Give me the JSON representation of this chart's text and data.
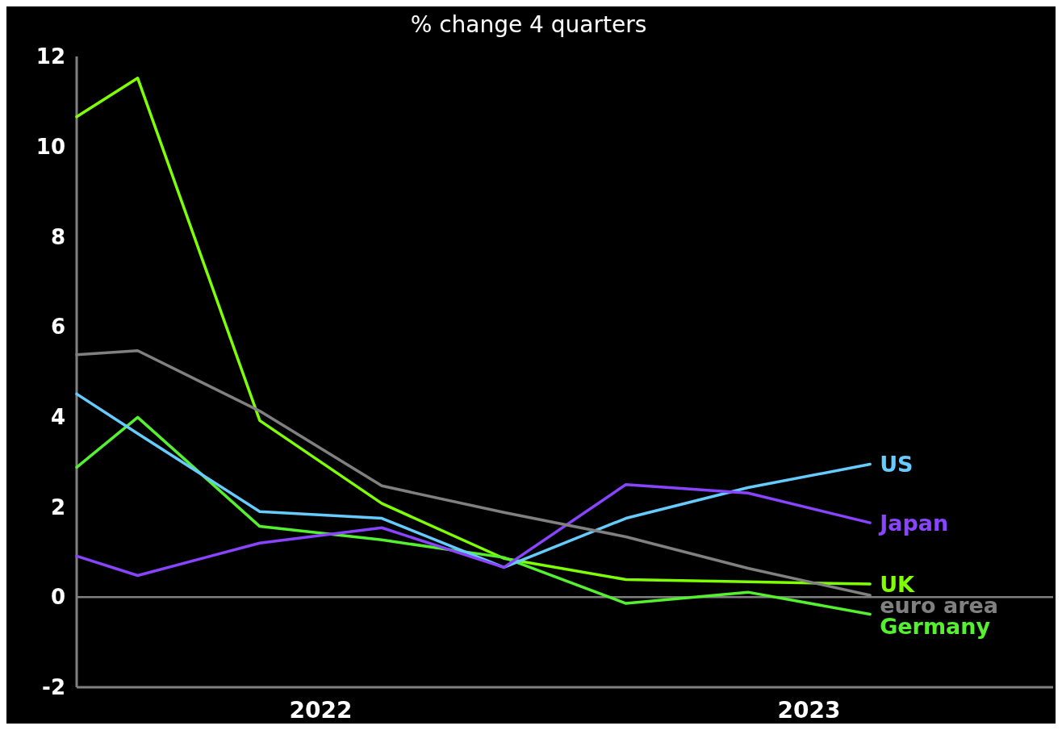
{
  "chart_data": {
    "type": "line",
    "title": "% change 4 quarters",
    "x": [
      2022.0,
      2022.125,
      2022.375,
      2022.625,
      2022.875,
      2023.125,
      2023.375,
      2023.625
    ],
    "series": [
      {
        "name": "UK",
        "color": "#7fff00",
        "values": [
          10.66,
          11.52,
          3.92,
          2.08,
          0.86,
          0.39,
          0.34,
          0.29
        ]
      },
      {
        "name": "Germany",
        "color": "#55f030",
        "values": [
          2.88,
          3.99,
          1.57,
          1.27,
          0.88,
          -0.14,
          0.11,
          -0.38
        ]
      },
      {
        "name": "US",
        "color": "#66ccff",
        "values": [
          4.51,
          3.63,
          1.9,
          1.75,
          0.66,
          1.75,
          2.43,
          2.95
        ]
      },
      {
        "name": "Japan",
        "color": "#8844ff",
        "values": [
          0.91,
          0.48,
          1.2,
          1.54,
          0.66,
          2.5,
          2.31,
          1.65
        ]
      },
      {
        "name": "euro area",
        "color": "#808080",
        "values": [
          5.38,
          5.47,
          4.13,
          2.47,
          1.88,
          1.34,
          0.64,
          0.04
        ]
      }
    ],
    "xlim": [
      2022.0,
      2024.0
    ],
    "xticks": [
      {
        "value": 2022.5,
        "label": "2022"
      },
      {
        "value": 2023.5,
        "label": "2023"
      }
    ],
    "ylim": [
      -2,
      12
    ],
    "yticks": [
      -2,
      0,
      2,
      4,
      6,
      8,
      10,
      12
    ],
    "ref_lines": [
      {
        "axis": "y",
        "value": 0,
        "color": "#808080"
      }
    ],
    "grid": false,
    "legend": false,
    "marker": "none",
    "line_style": "solid"
  }
}
